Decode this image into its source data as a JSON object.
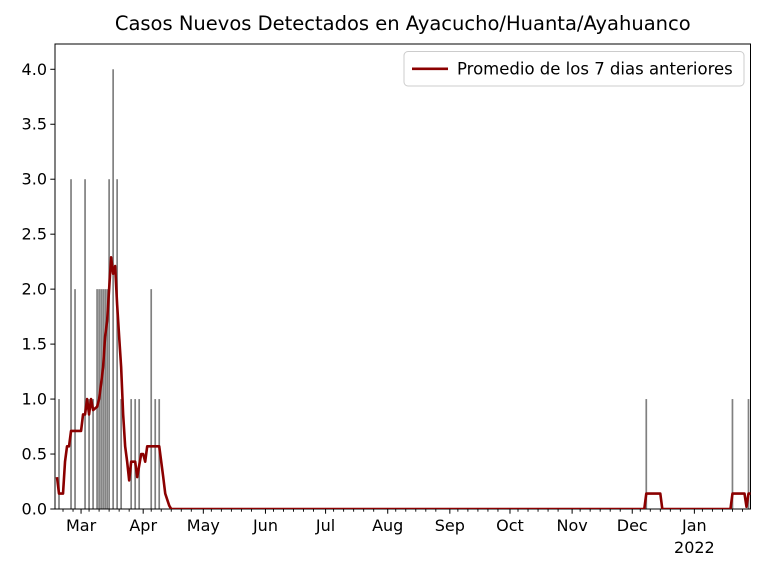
{
  "chart_data": {
    "type": "bar+line",
    "title": "Casos Nuevos Detectados en Ayacucho/Huanta/Ayahuanco",
    "legend": {
      "label": "Promedio de los 7 dias anteriores",
      "position": "upper right"
    },
    "grid": false,
    "colors": {
      "bars": "#808080",
      "line": "#8b0000",
      "axis": "#000000",
      "legend_edge": "#cccccc"
    },
    "y_axis": {
      "min": 0,
      "max": 4.23,
      "ticks": [
        {
          "value": 0.0,
          "label": "0.0"
        },
        {
          "value": 0.5,
          "label": "0.5"
        },
        {
          "value": 1.0,
          "label": "1.0"
        },
        {
          "value": 1.5,
          "label": "1.5"
        },
        {
          "value": 2.0,
          "label": "2.0"
        },
        {
          "value": 2.5,
          "label": "2.5"
        },
        {
          "value": 3.0,
          "label": "3.0"
        },
        {
          "value": 3.5,
          "label": "3.5"
        },
        {
          "value": 4.0,
          "label": "4.0"
        }
      ]
    },
    "x_axis": {
      "start": "2021-02-16",
      "end": "2022-01-29",
      "minor_tick_monthdays": [
        5,
        10,
        15,
        20,
        25
      ],
      "month_ticks": [
        {
          "label": "Mar",
          "date": "2021-03-01"
        },
        {
          "label": "Apr",
          "date": "2021-04-01"
        },
        {
          "label": "May",
          "date": "2021-05-01"
        },
        {
          "label": "Jun",
          "date": "2021-06-01"
        },
        {
          "label": "Jul",
          "date": "2021-07-01"
        },
        {
          "label": "Aug",
          "date": "2021-08-01"
        },
        {
          "label": "Sep",
          "date": "2021-09-01"
        },
        {
          "label": "Oct",
          "date": "2021-10-01"
        },
        {
          "label": "Nov",
          "date": "2021-11-01"
        },
        {
          "label": "Dec",
          "date": "2021-12-01"
        },
        {
          "label": "Jan",
          "date": "2022-01-01",
          "year_sublabel": "2022"
        }
      ]
    },
    "bars": [
      {
        "date": "2021-02-18",
        "value": 1
      },
      {
        "date": "2021-02-24",
        "value": 3
      },
      {
        "date": "2021-02-26",
        "value": 2
      },
      {
        "date": "2021-03-03",
        "value": 3
      },
      {
        "date": "2021-03-05",
        "value": 1
      },
      {
        "date": "2021-03-07",
        "value": 1
      },
      {
        "date": "2021-03-09",
        "value": 2
      },
      {
        "date": "2021-03-10",
        "value": 2
      },
      {
        "date": "2021-03-11",
        "value": 2
      },
      {
        "date": "2021-03-12",
        "value": 2
      },
      {
        "date": "2021-03-13",
        "value": 2
      },
      {
        "date": "2021-03-14",
        "value": 2
      },
      {
        "date": "2021-03-15",
        "value": 3
      },
      {
        "date": "2021-03-17",
        "value": 4
      },
      {
        "date": "2021-03-19",
        "value": 3
      },
      {
        "date": "2021-03-21",
        "value": 1
      },
      {
        "date": "2021-03-26",
        "value": 1
      },
      {
        "date": "2021-03-28",
        "value": 1
      },
      {
        "date": "2021-03-30",
        "value": 1
      },
      {
        "date": "2021-04-05",
        "value": 2
      },
      {
        "date": "2021-04-07",
        "value": 1
      },
      {
        "date": "2021-04-09",
        "value": 1
      },
      {
        "date": "2021-12-08",
        "value": 1
      },
      {
        "date": "2022-01-20",
        "value": 1
      },
      {
        "date": "2022-01-28",
        "value": 1
      }
    ],
    "line_7day_avg": [
      [
        "2021-02-17",
        0.29
      ],
      [
        "2021-02-18",
        0.14
      ],
      [
        "2021-02-20",
        0.14
      ],
      [
        "2021-02-21",
        0.43
      ],
      [
        "2021-02-22",
        0.57
      ],
      [
        "2021-02-23",
        0.57
      ],
      [
        "2021-02-24",
        0.71
      ],
      [
        "2021-03-01",
        0.71
      ],
      [
        "2021-03-02",
        0.86
      ],
      [
        "2021-03-03",
        0.86
      ],
      [
        "2021-03-04",
        1.0
      ],
      [
        "2021-03-05",
        0.86
      ],
      [
        "2021-03-06",
        1.0
      ],
      [
        "2021-03-07",
        0.9
      ],
      [
        "2021-03-09",
        0.93
      ],
      [
        "2021-03-10",
        1.0
      ],
      [
        "2021-03-11",
        1.14
      ],
      [
        "2021-03-12",
        1.29
      ],
      [
        "2021-03-13",
        1.57
      ],
      [
        "2021-03-14",
        1.71
      ],
      [
        "2021-03-15",
        2.0
      ],
      [
        "2021-03-16",
        2.29
      ],
      [
        "2021-03-17",
        2.14
      ],
      [
        "2021-03-18",
        2.21
      ],
      [
        "2021-03-19",
        1.86
      ],
      [
        "2021-03-20",
        1.57
      ],
      [
        "2021-03-21",
        1.29
      ],
      [
        "2021-03-22",
        0.86
      ],
      [
        "2021-03-23",
        0.57
      ],
      [
        "2021-03-24",
        0.43
      ],
      [
        "2021-03-25",
        0.26
      ],
      [
        "2021-03-26",
        0.43
      ],
      [
        "2021-03-28",
        0.43
      ],
      [
        "2021-03-29",
        0.29
      ],
      [
        "2021-03-31",
        0.5
      ],
      [
        "2021-04-01",
        0.5
      ],
      [
        "2021-04-02",
        0.43
      ],
      [
        "2021-04-03",
        0.57
      ],
      [
        "2021-04-09",
        0.57
      ],
      [
        "2021-04-10",
        0.43
      ],
      [
        "2021-04-11",
        0.29
      ],
      [
        "2021-04-12",
        0.14
      ],
      [
        "2021-04-14",
        0.03
      ],
      [
        "2021-04-15",
        0
      ],
      [
        "2021-12-07",
        0
      ],
      [
        "2021-12-08",
        0.14
      ],
      [
        "2021-12-15",
        0.14
      ],
      [
        "2021-12-16",
        0
      ],
      [
        "2022-01-19",
        0
      ],
      [
        "2022-01-20",
        0.14
      ],
      [
        "2022-01-26",
        0.14
      ],
      [
        "2022-01-27",
        0.02
      ],
      [
        "2022-01-28",
        0.14
      ],
      [
        "2022-01-29",
        0.14
      ]
    ]
  }
}
